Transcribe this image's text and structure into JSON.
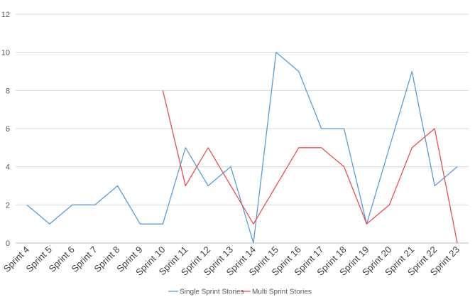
{
  "chart_data": {
    "type": "line",
    "categories": [
      "Sprint 4",
      "Sprint 5",
      "Sprint 6",
      "Sprint 7",
      "Sprint 8",
      "Sprint 9",
      "Sprint 10",
      "Sprint 11",
      "Sprint 12",
      "Sprint 13",
      "Sprint 14",
      "Sprint 15",
      "Sprint 16",
      "Sprint 17",
      "Sprint 18",
      "Sprint 19",
      "Sprint 20",
      "Sprint 21",
      "Sprint 22",
      "Sprint 23"
    ],
    "series": [
      {
        "name": "Single Sprint Stories",
        "color": "#5b9bd5",
        "values": [
          2,
          1,
          2,
          2,
          3,
          1,
          1,
          5,
          3,
          4,
          0,
          10,
          9,
          6,
          6,
          1,
          5,
          9,
          3,
          4
        ]
      },
      {
        "name": "Multi Sprint Stories",
        "color": "#e84f55",
        "values": [
          null,
          null,
          null,
          null,
          null,
          null,
          8,
          3,
          5,
          3,
          1,
          3,
          5,
          5,
          4,
          1,
          2,
          5,
          6,
          0
        ]
      }
    ],
    "yticks": [
      "0",
      "2",
      "4",
      "6",
      "8",
      "10",
      "12"
    ],
    "ylim": [
      0,
      12
    ],
    "grid": true,
    "legend_position": "bottom",
    "title": "",
    "xlabel": "",
    "ylabel": ""
  }
}
